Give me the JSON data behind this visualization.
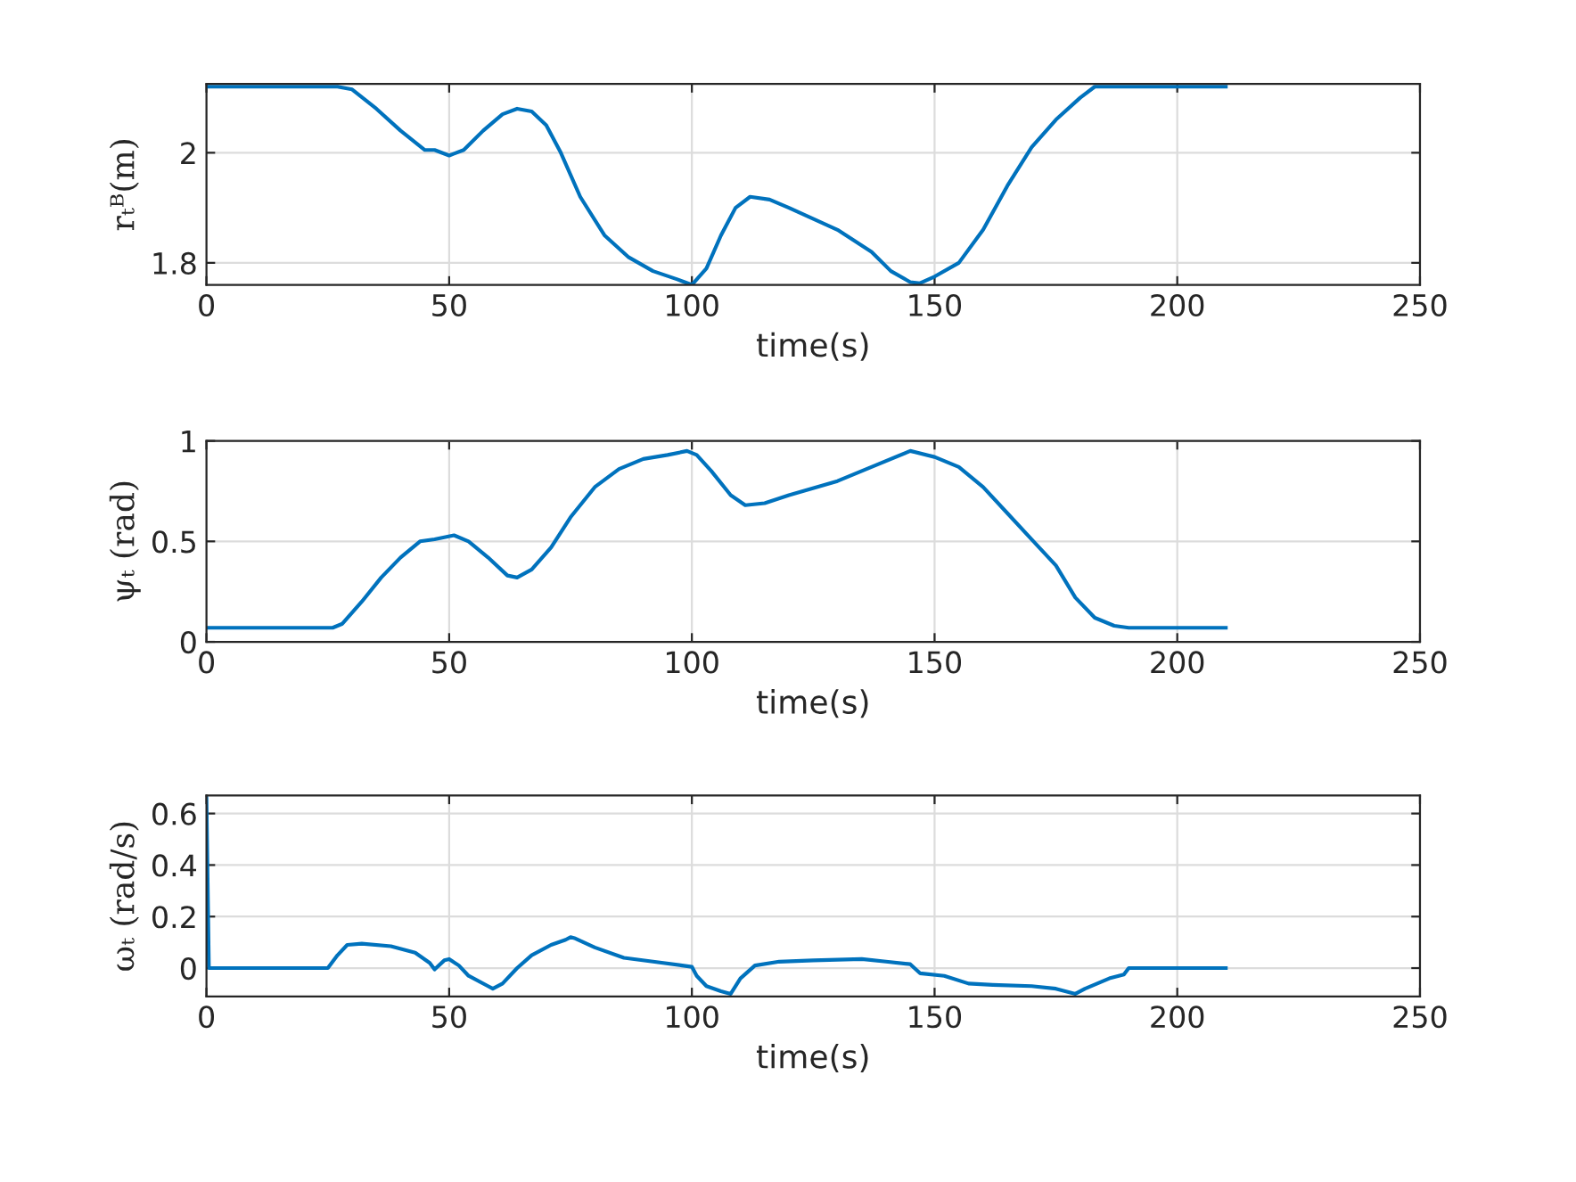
{
  "chart_data": [
    {
      "type": "line",
      "xlabel": "time(s)",
      "ylabel": "rₜᴮ(m)",
      "xlim": [
        0,
        250
      ],
      "xticks": [
        0,
        50,
        100,
        150,
        200,
        250
      ],
      "ylim": [
        1.76,
        2.125
      ],
      "yticks": [
        1.8,
        2
      ],
      "grid": true,
      "series": [
        {
          "color": "#0072bd",
          "x": [
            0,
            27,
            30,
            35,
            40,
            45,
            47,
            50,
            53,
            57,
            61,
            64,
            67,
            70,
            73,
            77,
            82,
            87,
            92,
            97,
            100,
            103,
            106,
            109,
            112,
            116,
            120,
            130,
            137,
            141,
            145,
            147,
            150,
            155,
            160,
            165,
            170,
            175,
            180,
            183,
            210
          ],
          "values": [
            2.12,
            2.12,
            2.115,
            2.08,
            2.04,
            2.005,
            2.005,
            1.995,
            2.005,
            2.04,
            2.07,
            2.08,
            2.075,
            2.05,
            2.0,
            1.92,
            1.85,
            1.81,
            1.785,
            1.77,
            1.76,
            1.79,
            1.85,
            1.9,
            1.92,
            1.915,
            1.9,
            1.86,
            1.82,
            1.785,
            1.765,
            1.763,
            1.775,
            1.8,
            1.86,
            1.94,
            2.01,
            2.06,
            2.1,
            2.12,
            2.12
          ]
        }
      ]
    },
    {
      "type": "line",
      "xlabel": "time(s)",
      "ylabel": "ψₜ (rad)",
      "xlim": [
        0,
        250
      ],
      "xticks": [
        0,
        50,
        100,
        150,
        200,
        250
      ],
      "ylim": [
        0,
        1
      ],
      "yticks": [
        0,
        0.5,
        1
      ],
      "grid": true,
      "series": [
        {
          "color": "#0072bd",
          "x": [
            0,
            26,
            28,
            32,
            36,
            40,
            44,
            47,
            51,
            54,
            58,
            62,
            64,
            67,
            71,
            75,
            80,
            85,
            90,
            95,
            99,
            101,
            104,
            108,
            111,
            115,
            120,
            130,
            138,
            145,
            150,
            155,
            160,
            165,
            170,
            175,
            179,
            183,
            187,
            190,
            210
          ],
          "values": [
            0.07,
            0.07,
            0.09,
            0.2,
            0.32,
            0.42,
            0.5,
            0.51,
            0.53,
            0.5,
            0.42,
            0.33,
            0.32,
            0.36,
            0.47,
            0.62,
            0.77,
            0.86,
            0.91,
            0.93,
            0.95,
            0.93,
            0.85,
            0.73,
            0.68,
            0.69,
            0.73,
            0.8,
            0.88,
            0.95,
            0.92,
            0.87,
            0.77,
            0.64,
            0.51,
            0.38,
            0.22,
            0.12,
            0.08,
            0.07,
            0.07
          ]
        }
      ]
    },
    {
      "type": "line",
      "xlabel": "time(s)",
      "ylabel": "ωₜ (rad/s)",
      "xlim": [
        0,
        250
      ],
      "xticks": [
        0,
        50,
        100,
        150,
        200,
        250
      ],
      "ylim": [
        -0.11,
        0.67
      ],
      "yticks": [
        0,
        0.2,
        0.4,
        0.6
      ],
      "grid": true,
      "series": [
        {
          "color": "#0072bd",
          "x": [
            0,
            0.5,
            25,
            27,
            29,
            32,
            38,
            43,
            46,
            47,
            49,
            50,
            52,
            54,
            58,
            59,
            61,
            64,
            67,
            71,
            74,
            75,
            76,
            80,
            86,
            92,
            98,
            100,
            101,
            103,
            106,
            108,
            110,
            113,
            118,
            125,
            135,
            140,
            145,
            147,
            152,
            157,
            162,
            170,
            175,
            179,
            181,
            186,
            189,
            190,
            210
          ],
          "values": [
            0.66,
            0.0,
            0,
            0.05,
            0.09,
            0.095,
            0.085,
            0.06,
            0.02,
            -0.005,
            0.03,
            0.035,
            0.01,
            -0.03,
            -0.07,
            -0.08,
            -0.06,
            0.0,
            0.05,
            0.09,
            0.11,
            0.12,
            0.115,
            0.08,
            0.04,
            0.025,
            0.01,
            0.005,
            -0.03,
            -0.07,
            -0.09,
            -0.1,
            -0.04,
            0.01,
            0.025,
            0.03,
            0.035,
            0.025,
            0.015,
            -0.02,
            -0.03,
            -0.06,
            -0.065,
            -0.07,
            -0.08,
            -0.1,
            -0.08,
            -0.04,
            -0.025,
            0.0,
            0.0
          ]
        }
      ]
    }
  ]
}
